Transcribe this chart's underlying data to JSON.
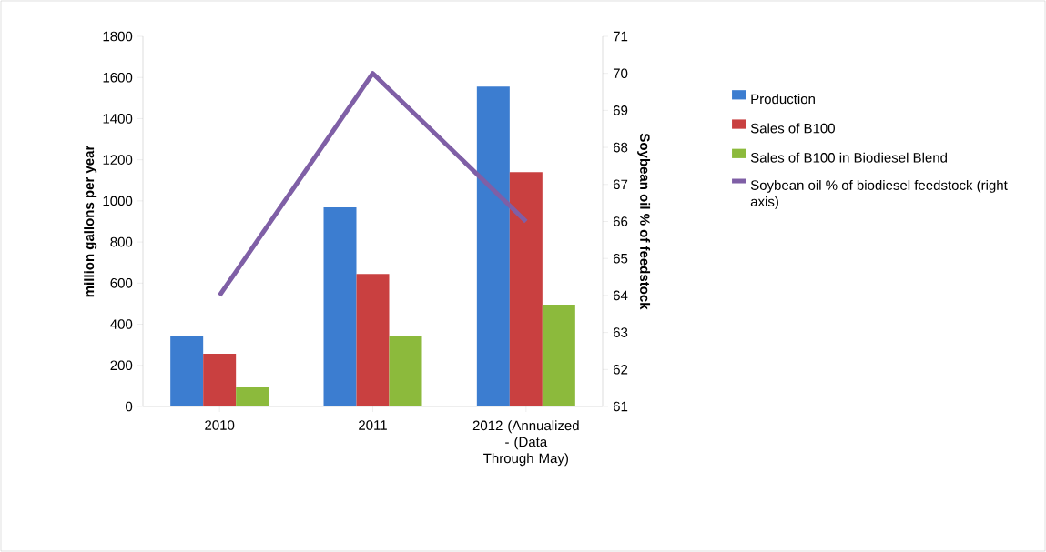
{
  "chart_data": {
    "type": "bar",
    "categories": [
      "2010",
      "2011",
      "2012 (Annualized - (Data Through May)"
    ],
    "ylabel": "million gallons per year",
    "y2label": "Soybean oil % of feedstock",
    "series": [
      {
        "name": "Production",
        "color": "#3c7dd0",
        "values": [
          345,
          968,
          1556
        ]
      },
      {
        "name": "Sales of B100",
        "color": "#c94040",
        "values": [
          256,
          645,
          1140
        ]
      },
      {
        "name": "Sales of B100 in Biodiesel Blend",
        "color": "#8cba3c",
        "values": [
          93,
          345,
          495
        ]
      },
      {
        "name": "Soybean oil % of biodiesel feedstock (right axis)",
        "type": "line",
        "axis": "y2",
        "color": "#7f5fa6",
        "values": [
          64,
          70,
          66
        ]
      }
    ],
    "ylim": [
      0,
      1800
    ],
    "yticks": [
      0,
      200,
      400,
      600,
      800,
      1000,
      1200,
      1400,
      1600,
      1800
    ],
    "y2lim": [
      61,
      71
    ],
    "y2ticks": [
      61,
      62,
      63,
      64,
      65,
      66,
      67,
      68,
      69,
      70,
      71
    ],
    "grid": false,
    "legend": "right"
  }
}
